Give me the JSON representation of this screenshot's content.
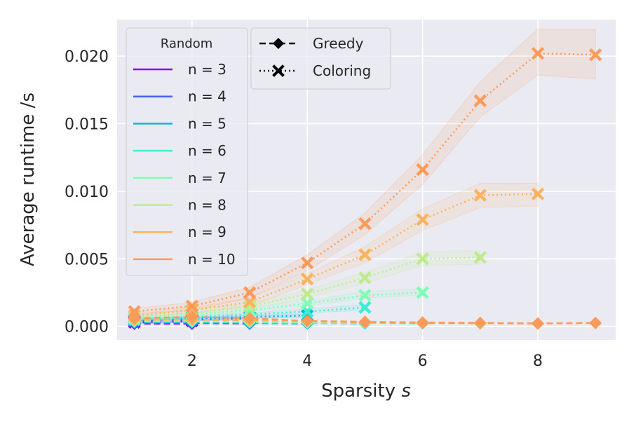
{
  "chart_data": {
    "type": "line",
    "xlabel": "Sparsity ",
    "xlabel_var": "s",
    "ylabel": "Average runtime /s",
    "xlim": [
      0.7,
      9.35
    ],
    "ylim": [
      -0.001,
      0.0227
    ],
    "xticks": [
      2,
      4,
      6,
      8
    ],
    "yticks": [
      0.0,
      0.005,
      0.01,
      0.015,
      0.02
    ],
    "ytick_labels": [
      "0.000",
      "0.005",
      "0.010",
      "0.015",
      "0.020"
    ],
    "legend_random": {
      "title": "Random",
      "entries": [
        "n = 3",
        "n = 4",
        "n = 5",
        "n = 6",
        "n = 7",
        "n = 8",
        "n = 9",
        "n = 10"
      ]
    },
    "legend_methods": [
      {
        "label": "Greedy",
        "linestyle": "dashed",
        "marker": "diamond"
      },
      {
        "label": "Coloring",
        "linestyle": "dotted",
        "marker": "x"
      }
    ],
    "series": [
      {
        "name": "n = 3",
        "color": "#8000ff",
        "x": [
          1,
          2
        ],
        "greedy": [
          0.0002,
          0.0002
        ],
        "coloring": [
          0.0003,
          0.0004
        ],
        "band_lo": [
          0.0002,
          0.0003
        ],
        "band_hi": [
          0.0004,
          0.0005
        ]
      },
      {
        "name": "n = 4",
        "color": "#4062fa",
        "x": [
          1,
          2,
          3
        ],
        "greedy": [
          0.00025,
          0.00025,
          0.0002
        ],
        "coloring": [
          0.0004,
          0.0005,
          0.0006
        ],
        "band_lo": [
          0.0003,
          0.0004,
          0.0005
        ],
        "band_hi": [
          0.0005,
          0.0006,
          0.0007
        ]
      },
      {
        "name": "n = 5",
        "color": "#00b5eb",
        "x": [
          1,
          2,
          3,
          4
        ],
        "greedy": [
          0.0003,
          0.0003,
          0.00025,
          0.0002
        ],
        "coloring": [
          0.0005,
          0.0006,
          0.0007,
          0.0008
        ],
        "band_lo": [
          0.0004,
          0.0005,
          0.0006,
          0.0007
        ],
        "band_hi": [
          0.0006,
          0.0007,
          0.0008,
          0.0009
        ]
      },
      {
        "name": "n = 6",
        "color": "#40ecd4",
        "x": [
          1,
          2,
          3,
          4,
          5
        ],
        "greedy": [
          0.00035,
          0.00035,
          0.0003,
          0.00025,
          0.0002
        ],
        "coloring": [
          0.0005,
          0.0007,
          0.0009,
          0.0011,
          0.0014
        ],
        "band_lo": [
          0.0004,
          0.0006,
          0.0008,
          0.001,
          0.0012
        ],
        "band_hi": [
          0.0006,
          0.0008,
          0.001,
          0.0013,
          0.0016
        ]
      },
      {
        "name": "n = 7",
        "color": "#80ffb4",
        "x": [
          1,
          2,
          3,
          4,
          5,
          6
        ],
        "greedy": [
          0.0004,
          0.0004,
          0.00035,
          0.0003,
          0.00025,
          0.0002
        ],
        "coloring": [
          0.0006,
          0.0009,
          0.0012,
          0.0017,
          0.0023,
          0.0025
        ],
        "band_lo": [
          0.0005,
          0.0008,
          0.0011,
          0.0015,
          0.0021,
          0.0023
        ],
        "band_hi": [
          0.0007,
          0.001,
          0.0014,
          0.0019,
          0.0026,
          0.0028
        ]
      },
      {
        "name": "n = 8",
        "color": "#c0eb8d",
        "x": [
          1,
          2,
          3,
          4,
          5,
          6,
          7
        ],
        "greedy": [
          0.00045,
          0.00045,
          0.0004,
          0.00035,
          0.0003,
          0.00025,
          0.0002
        ],
        "coloring": [
          0.0007,
          0.001,
          0.0015,
          0.0024,
          0.0036,
          0.005,
          0.0051
        ],
        "band_lo": [
          0.0006,
          0.0009,
          0.0013,
          0.0021,
          0.0032,
          0.0045,
          0.0046
        ],
        "band_hi": [
          0.0008,
          0.0012,
          0.0017,
          0.0027,
          0.004,
          0.0055,
          0.0056
        ]
      },
      {
        "name": "n = 9",
        "color": "#ffb360",
        "x": [
          1,
          2,
          3,
          4,
          5,
          6,
          7,
          8
        ],
        "greedy": [
          0.0005,
          0.0005,
          0.00045,
          0.0004,
          0.00035,
          0.0003,
          0.00025,
          0.0002
        ],
        "coloring": [
          0.0008,
          0.0012,
          0.0018,
          0.0035,
          0.0053,
          0.0079,
          0.0097,
          0.0098
        ],
        "band_lo": [
          0.0007,
          0.001,
          0.0015,
          0.0031,
          0.0047,
          0.0071,
          0.0088,
          0.0089
        ],
        "band_hi": [
          0.0009,
          0.0014,
          0.0021,
          0.0039,
          0.0059,
          0.0087,
          0.0106,
          0.0106
        ]
      },
      {
        "name": "n = 10",
        "color": "#ff9b5a",
        "x": [
          1,
          2,
          3,
          4,
          5,
          6,
          7,
          8,
          9
        ],
        "greedy": [
          0.0006,
          0.0007,
          0.0006,
          0.0004,
          0.0003,
          0.00025,
          0.00025,
          0.00022,
          0.00025
        ],
        "coloring": [
          0.0011,
          0.0015,
          0.0025,
          0.0047,
          0.0076,
          0.0116,
          0.0167,
          0.0202,
          0.0201
        ],
        "band_lo": [
          0.0009,
          0.0012,
          0.0021,
          0.0041,
          0.0068,
          0.0105,
          0.0155,
          0.0186,
          0.0183
        ],
        "band_hi": [
          0.0013,
          0.0018,
          0.0029,
          0.0053,
          0.0084,
          0.0127,
          0.0181,
          0.022,
          0.022
        ]
      }
    ]
  }
}
